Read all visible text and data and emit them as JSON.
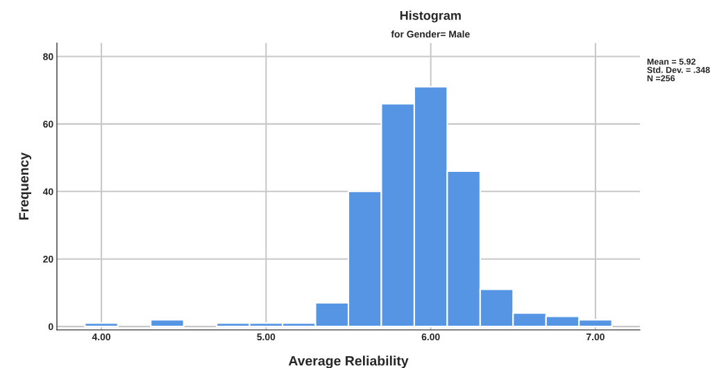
{
  "chart_data": {
    "type": "histogram",
    "title": "Histogram",
    "subtitle": "for Gender= Male",
    "xlabel": "Average Reliability",
    "ylabel": "Frequency",
    "bins": [
      3.9,
      4.1,
      4.3,
      4.5,
      4.7,
      4.9,
      5.1,
      5.3,
      5.5,
      5.7,
      5.9,
      6.1,
      6.3,
      6.5,
      6.7,
      6.9,
      7.1
    ],
    "values": [
      1,
      0,
      2,
      0,
      1,
      1,
      1,
      7,
      40,
      66,
      71,
      46,
      11,
      4,
      3,
      2
    ],
    "color": "#5595e4",
    "xlim": [
      3.73,
      7.27
    ],
    "xticks": [
      {
        "value": 4,
        "label": "4.00"
      },
      {
        "value": 5,
        "label": "5.00"
      },
      {
        "value": 6,
        "label": "6.00"
      },
      {
        "value": 7,
        "label": "7.00"
      }
    ],
    "ylim": [
      -1,
      84
    ],
    "yticks": [
      0,
      20,
      40,
      60,
      80
    ],
    "grid": true,
    "annotations": [
      "Mean = 5.92",
      "Std. Dev. = .348",
      "N =256"
    ]
  }
}
